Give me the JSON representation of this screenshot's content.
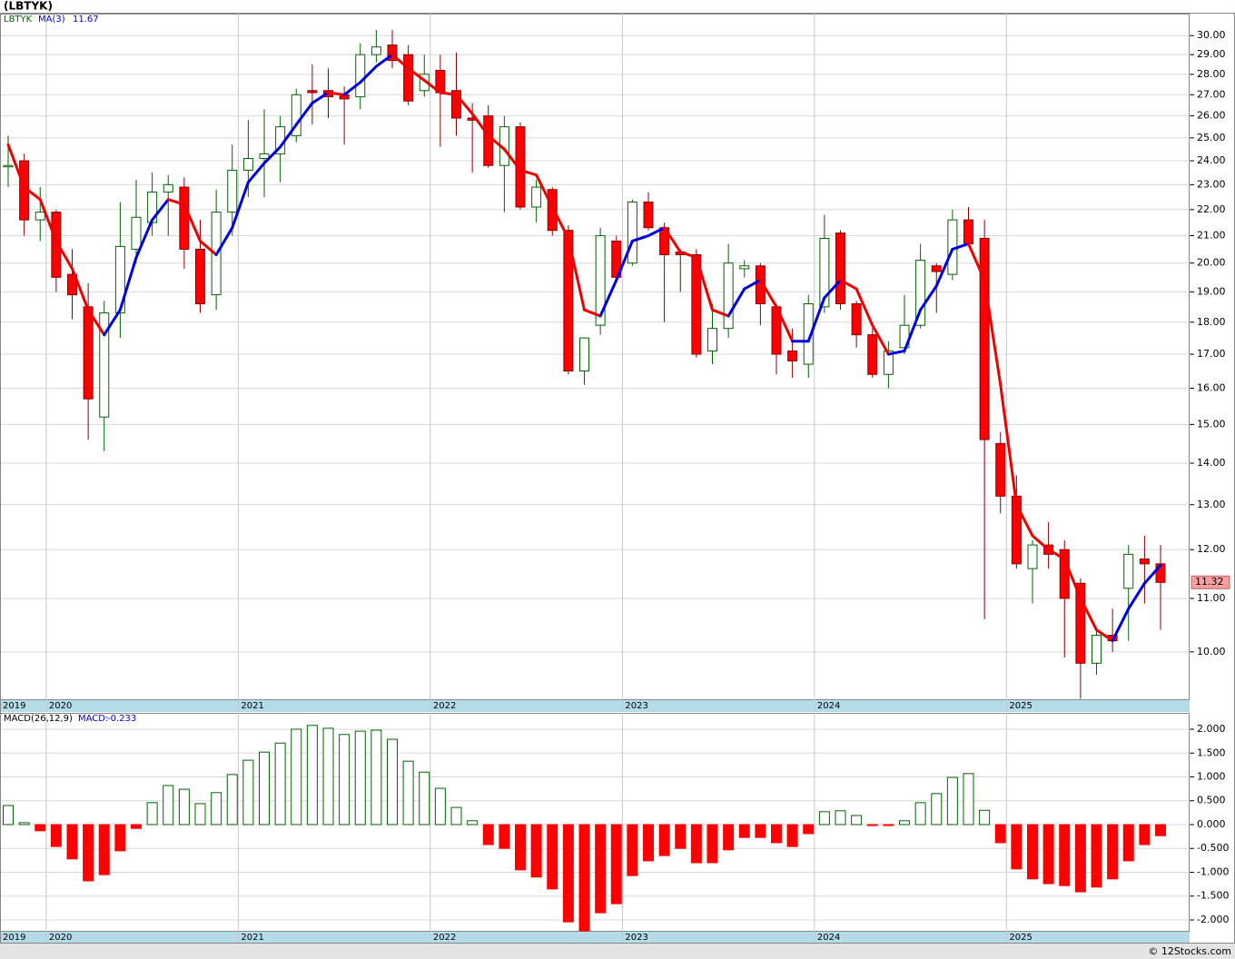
{
  "chart_data": [
    {
      "type": "candlestick",
      "title": "(LBTYK)",
      "name": "LBTYK",
      "categories": [
        "2019",
        null,
        null,
        "2020",
        null,
        null,
        null,
        null,
        null,
        null,
        null,
        null,
        null,
        null,
        null,
        "2021",
        null,
        null,
        null,
        null,
        null,
        null,
        null,
        null,
        null,
        null,
        null,
        "2022",
        null,
        null,
        null,
        null,
        null,
        null,
        null,
        null,
        null,
        null,
        null,
        "2023",
        null,
        null,
        null,
        null,
        null,
        null,
        null,
        null,
        null,
        null,
        null,
        "2024",
        null,
        null,
        null,
        null,
        null,
        null,
        null,
        null,
        null,
        null,
        null,
        "2025",
        null,
        null,
        null,
        null,
        null,
        null,
        null,
        null,
        null
      ],
      "open": [
        23.8,
        24.0,
        21.6,
        21.9,
        19.6,
        18.5,
        15.2,
        18.3,
        20.5,
        21.5,
        22.7,
        22.9,
        20.5,
        18.9,
        21.9,
        23.6,
        24.1,
        24.3,
        25.1,
        27.2,
        27.2,
        27.0,
        26.9,
        29.0,
        29.5,
        29.0,
        27.2,
        28.2,
        27.2,
        25.9,
        26.0,
        23.8,
        25.5,
        22.1,
        22.8,
        21.2,
        16.5,
        17.9,
        20.8,
        20.0,
        22.3,
        21.3,
        20.4,
        20.3,
        17.1,
        17.8,
        19.8,
        19.9,
        18.5,
        17.1,
        16.7,
        18.5,
        21.1,
        18.6,
        17.6,
        16.4,
        17.2,
        17.9,
        19.9,
        19.6,
        21.6,
        20.9,
        14.5,
        13.2,
        11.6,
        12.1,
        12.0,
        11.3,
        9.8,
        10.3,
        11.2,
        11.8,
        11.7
      ],
      "high": [
        25.1,
        24.3,
        22.9,
        22.0,
        20.5,
        19.3,
        18.7,
        22.3,
        23.2,
        23.5,
        23.4,
        23.3,
        21.6,
        22.8,
        24.7,
        25.8,
        26.3,
        26.0,
        27.3,
        28.5,
        28.3,
        27.4,
        29.6,
        30.3,
        30.3,
        29.5,
        29.0,
        29.0,
        29.1,
        26.6,
        26.5,
        26.0,
        25.7,
        23.2,
        22.9,
        21.4,
        17.5,
        21.3,
        21.0,
        22.4,
        22.7,
        21.5,
        20.5,
        20.5,
        18.6,
        20.7,
        20.1,
        20.0,
        18.6,
        17.8,
        18.9,
        21.8,
        21.2,
        18.7,
        17.8,
        17.4,
        18.9,
        20.7,
        20.0,
        22.0,
        22.1,
        21.6,
        14.8,
        13.7,
        12.2,
        12.6,
        12.2,
        11.4,
        10.4,
        10.8,
        12.1,
        12.3,
        12.1
      ],
      "low": [
        22.9,
        21.0,
        20.8,
        19.0,
        18.1,
        14.6,
        14.3,
        17.5,
        20.0,
        21.0,
        21.0,
        19.8,
        18.3,
        18.4,
        21.0,
        22.5,
        22.5,
        23.1,
        24.8,
        25.6,
        25.9,
        24.7,
        26.3,
        28.6,
        28.3,
        26.5,
        26.9,
        24.6,
        25.1,
        23.5,
        23.7,
        21.9,
        22.0,
        21.5,
        21.0,
        16.4,
        16.1,
        17.6,
        19.4,
        19.9,
        21.2,
        18.0,
        19.0,
        16.9,
        16.7,
        17.5,
        19.5,
        17.9,
        16.4,
        16.3,
        16.3,
        18.3,
        18.4,
        17.2,
        16.3,
        16.0,
        17.0,
        17.8,
        18.3,
        19.4,
        20.6,
        10.6,
        12.8,
        11.6,
        10.9,
        11.6,
        9.9,
        9.2,
        9.6,
        10.0,
        10.2,
        10.9,
        10.4
      ],
      "close": [
        23.8,
        21.6,
        21.9,
        19.5,
        18.9,
        15.7,
        18.3,
        20.6,
        21.7,
        22.7,
        23.0,
        20.5,
        18.6,
        21.9,
        23.6,
        24.1,
        24.3,
        25.5,
        27.0,
        27.1,
        26.9,
        26.8,
        29.0,
        29.4,
        28.7,
        26.7,
        28.0,
        27.1,
        25.9,
        25.8,
        23.8,
        25.5,
        22.1,
        22.9,
        21.2,
        16.5,
        17.5,
        21.0,
        19.5,
        22.3,
        21.3,
        20.3,
        20.3,
        17.0,
        17.8,
        20.0,
        19.9,
        18.6,
        17.0,
        16.8,
        18.6,
        20.9,
        18.6,
        17.6,
        16.4,
        17.1,
        17.9,
        20.1,
        19.7,
        21.6,
        20.7,
        14.6,
        13.2,
        11.7,
        12.1,
        11.9,
        11.0,
        9.8,
        10.3,
        10.2,
        11.9,
        11.7,
        11.32
      ],
      "up_color": "#006400",
      "down_color": "#ff0000",
      "ma": {
        "name": "MA(3)",
        "up_color": "#0000dd",
        "down_color": "#ee0000",
        "values": [
          24.7,
          22.9,
          22.4,
          20.8,
          19.8,
          18.4,
          17.6,
          18.4,
          20.2,
          21.6,
          22.4,
          22.2,
          20.8,
          20.3,
          21.3,
          23.1,
          23.9,
          24.6,
          25.6,
          26.6,
          27.1,
          27.0,
          27.6,
          28.4,
          29.0,
          28.3,
          27.7,
          27.1,
          27.0,
          26.1,
          25.1,
          24.5,
          23.6,
          23.4,
          22.1,
          20.9,
          18.4,
          18.2,
          19.4,
          20.8,
          21.0,
          21.3,
          20.4,
          20.2,
          18.4,
          18.2,
          19.1,
          19.4,
          18.5,
          17.4,
          17.4,
          18.8,
          19.4,
          19.1,
          17.9,
          17.0,
          17.1,
          18.4,
          19.2,
          20.5,
          20.7,
          19.4,
          16.1,
          13.0,
          12.3,
          12.0,
          11.8,
          11.0,
          10.4,
          10.2,
          10.8,
          11.3,
          11.67
        ]
      },
      "log_y": true,
      "ylim": [
        9.19,
        31.2
      ],
      "yticks": [
        {
          "value": 10,
          "label": "10.00"
        },
        {
          "value": 11,
          "label": "11.00"
        },
        {
          "value": 12,
          "label": "12.00"
        },
        {
          "value": 13,
          "label": "13.00"
        },
        {
          "value": 14,
          "label": "14.00"
        },
        {
          "value": 15,
          "label": "15.00"
        },
        {
          "value": 16,
          "label": "16.00"
        },
        {
          "value": 17,
          "label": "17.00"
        },
        {
          "value": 18,
          "label": "18.00"
        },
        {
          "value": 19,
          "label": "19.00"
        },
        {
          "value": 20,
          "label": "20.00"
        },
        {
          "value": 21,
          "label": "21.00"
        },
        {
          "value": 22,
          "label": "22.00"
        },
        {
          "value": 23,
          "label": "23.00"
        },
        {
          "value": 24,
          "label": "24.00"
        },
        {
          "value": 25,
          "label": "25.00"
        },
        {
          "value": 26,
          "label": "26.00"
        },
        {
          "value": 27,
          "label": "27.00"
        },
        {
          "value": 28,
          "label": "28.00"
        },
        {
          "value": 29,
          "label": "29.00"
        },
        {
          "value": 30,
          "label": "30.00"
        }
      ],
      "grid": true
    },
    {
      "type": "bar",
      "name": "MACD(26,12,9)",
      "value_name": "MACD:",
      "values": [
        0.4,
        0.04,
        -0.13,
        -0.46,
        -0.72,
        -1.18,
        -1.05,
        -0.55,
        -0.08,
        0.46,
        0.82,
        0.74,
        0.44,
        0.67,
        1.05,
        1.35,
        1.52,
        1.71,
        2.0,
        2.08,
        2.02,
        1.89,
        1.96,
        1.98,
        1.79,
        1.33,
        1.1,
        0.76,
        0.36,
        0.08,
        -0.42,
        -0.5,
        -0.95,
        -1.1,
        -1.35,
        -2.04,
        -2.23,
        -1.85,
        -1.66,
        -1.07,
        -0.76,
        -0.65,
        -0.5,
        -0.8,
        -0.8,
        -0.53,
        -0.27,
        -0.27,
        -0.38,
        -0.46,
        -0.19,
        0.27,
        0.29,
        0.19,
        -0.02,
        -0.02,
        0.08,
        0.46,
        0.65,
        0.99,
        1.07,
        0.3,
        -0.38,
        -0.93,
        -1.14,
        -1.24,
        -1.28,
        -1.41,
        -1.31,
        -1.14,
        -0.76,
        -0.42,
        -0.233
      ],
      "up_color": "#006400",
      "down_color": "#ff0000",
      "ylim": [
        -2.229,
        2.343
      ],
      "yticks": [
        {
          "value": -2,
          "label": "-2.000"
        },
        {
          "value": -1.5,
          "label": "-1.500"
        },
        {
          "value": -1,
          "label": "-1.000"
        },
        {
          "value": -0.5,
          "label": "-0.500"
        },
        {
          "value": 0,
          "label": "0.000"
        },
        {
          "value": 0.5,
          "label": "0.500"
        },
        {
          "value": 1,
          "label": "1.000"
        },
        {
          "value": 1.5,
          "label": "1.500"
        },
        {
          "value": 2,
          "label": "2.000"
        }
      ],
      "grid": true
    }
  ],
  "footer": "© 12Stocks.com"
}
